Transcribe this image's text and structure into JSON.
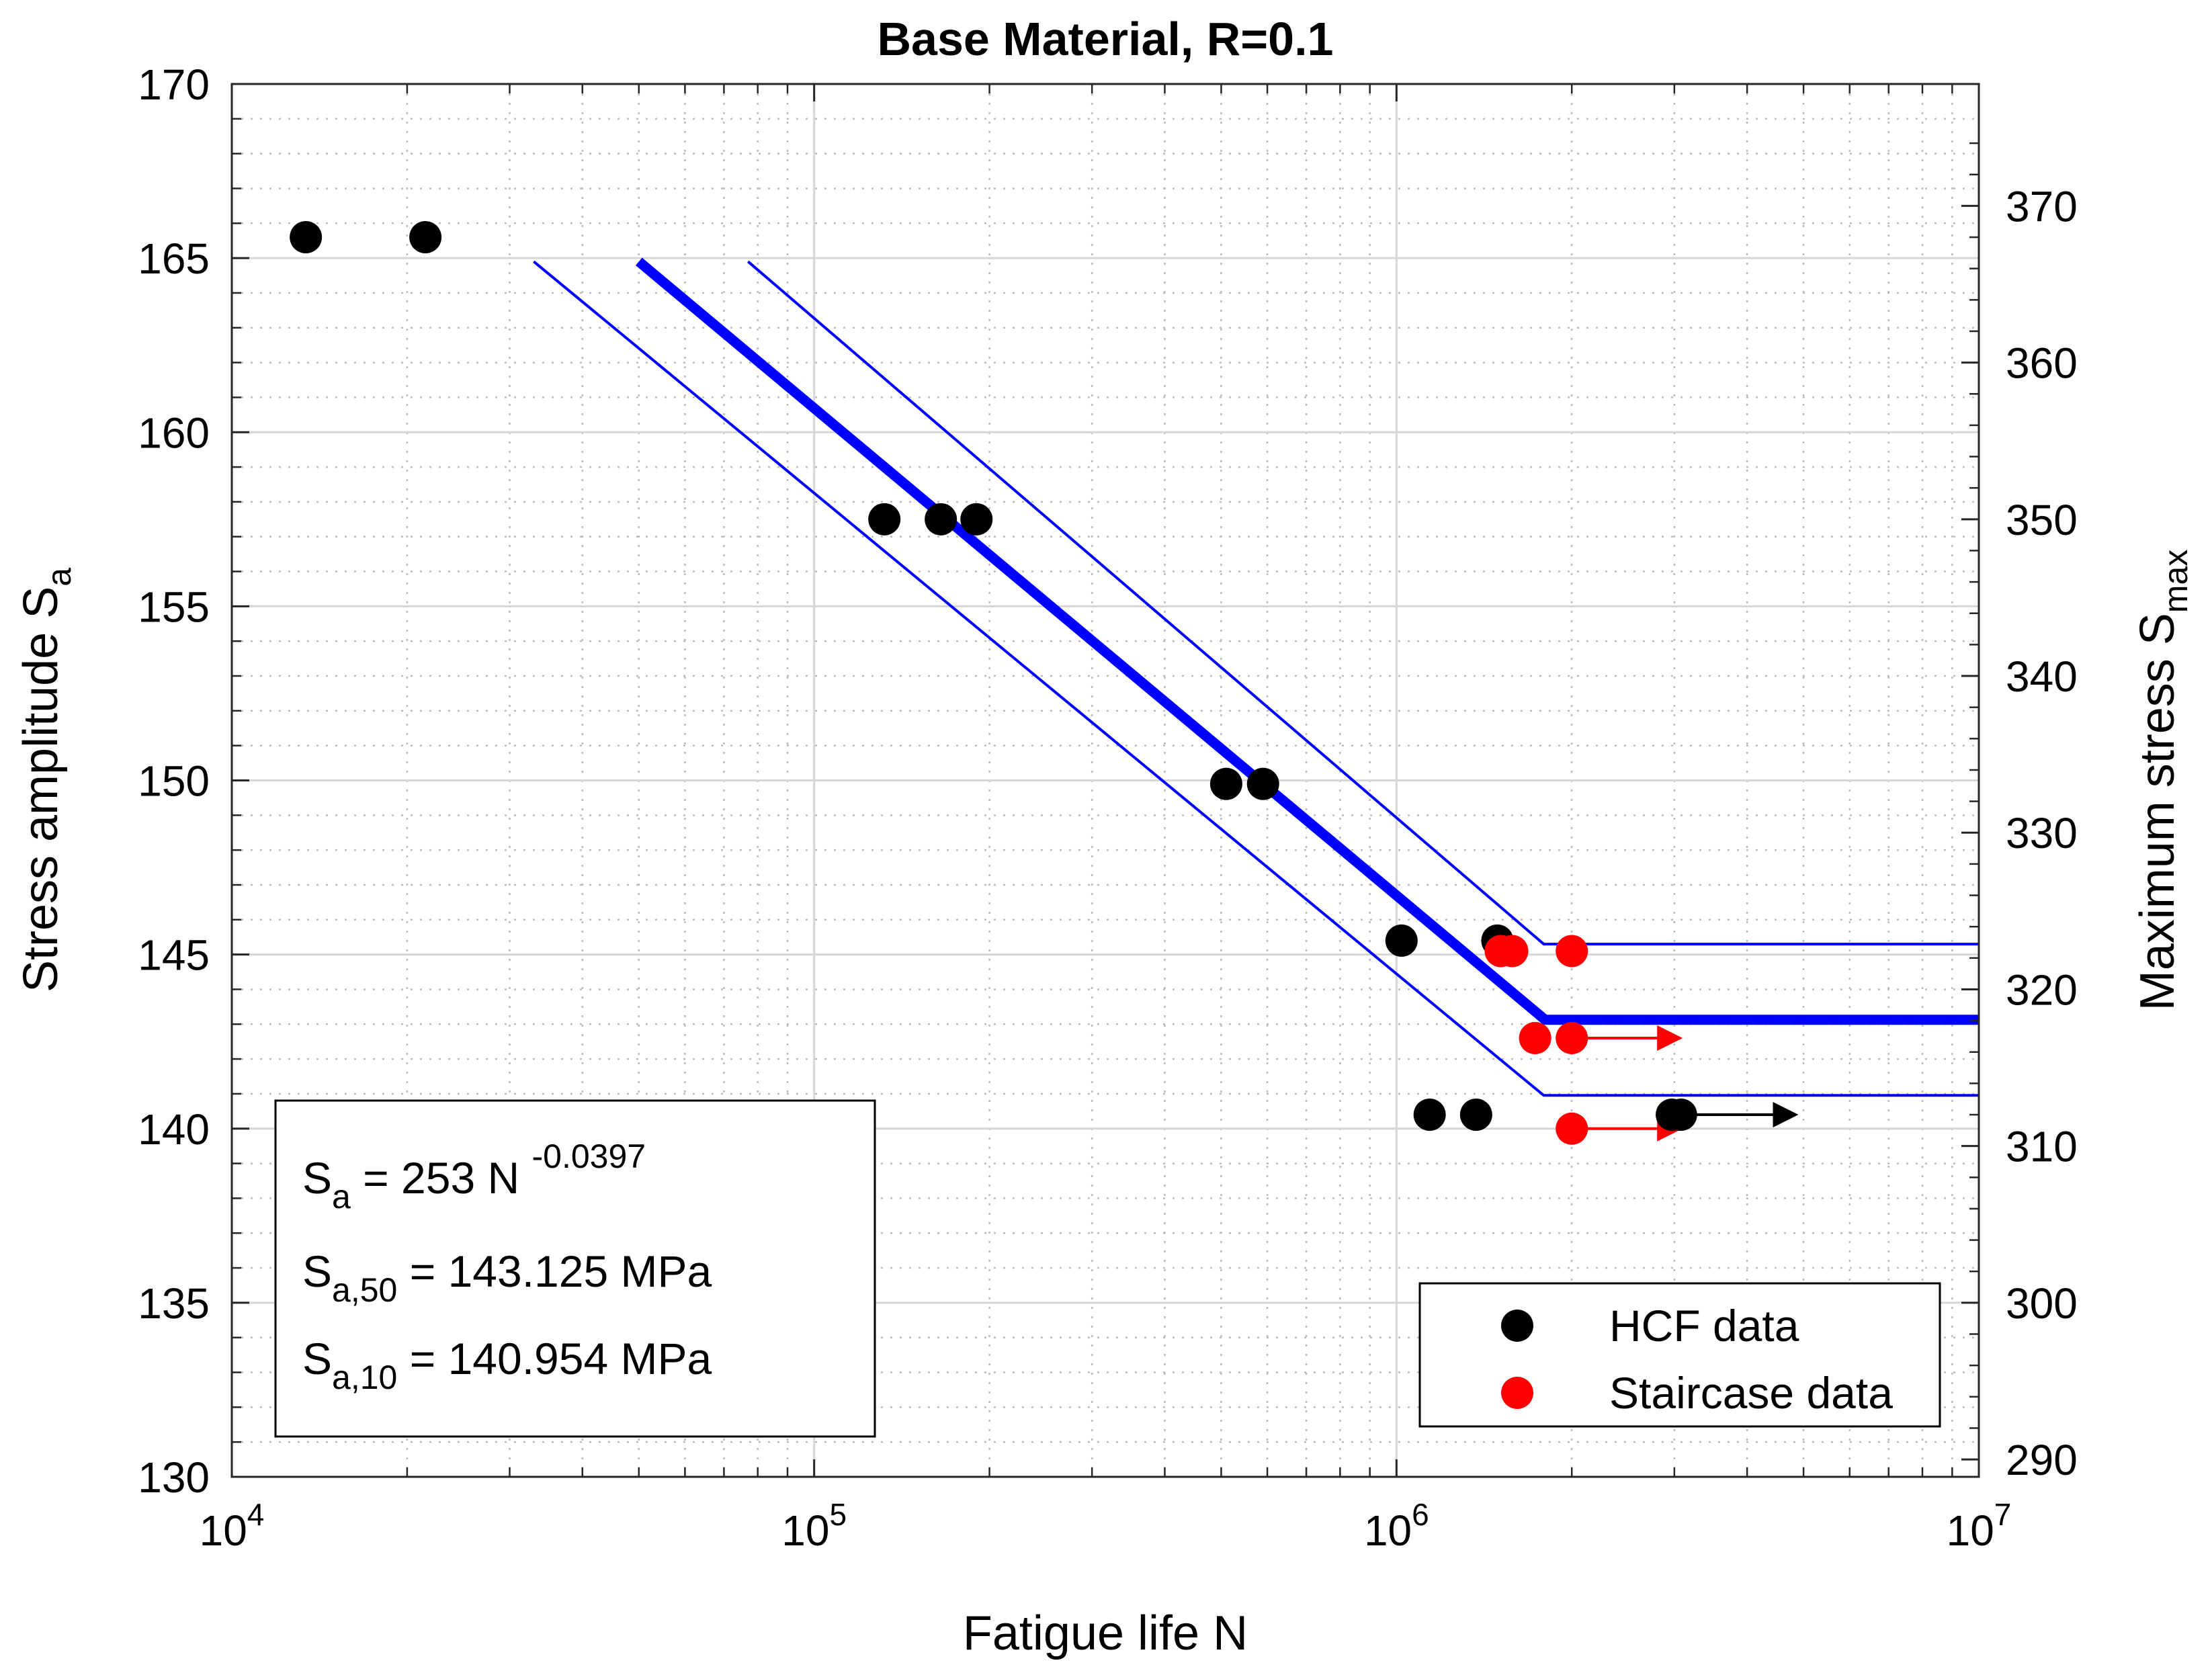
{
  "chart_data": {
    "type": "scatter",
    "title": "Base Material, R=0.1",
    "xlabel": "Fatigue life N",
    "xscale": "log",
    "xlim": [
      10000,
      10000000
    ],
    "x_tick_bases": [
      "10",
      "10",
      "10",
      "10"
    ],
    "x_tick_exponents": [
      "4",
      "5",
      "6",
      "7"
    ],
    "ylabel_main": "Stress amplitude S",
    "ylabel_sub": "a",
    "ylim": [
      130,
      170
    ],
    "yticks": [
      130,
      135,
      140,
      145,
      150,
      155,
      160,
      165,
      170
    ],
    "y2label_main": "Maximum stress S",
    "y2label_sub": "max",
    "y2lim": [
      288.889,
      377.778
    ],
    "y2ticks": [
      290,
      300,
      310,
      320,
      330,
      340,
      350,
      360,
      370
    ],
    "grid": true,
    "series": [
      {
        "name": "HCF data",
        "color": "#000000",
        "points": [
          {
            "x": 13400,
            "y": 165.6
          },
          {
            "x": 21500,
            "y": 165.6
          },
          {
            "x": 132000,
            "y": 157.5
          },
          {
            "x": 165000,
            "y": 157.5
          },
          {
            "x": 190000,
            "y": 157.5
          },
          {
            "x": 510000,
            "y": 149.9
          },
          {
            "x": 590000,
            "y": 149.9
          },
          {
            "x": 1020000,
            "y": 145.4
          },
          {
            "x": 1490000,
            "y": 145.4
          },
          {
            "x": 1140000,
            "y": 140.4
          },
          {
            "x": 1370000,
            "y": 140.4
          },
          {
            "x": 2970000,
            "y": 140.4
          },
          {
            "x": 3080000,
            "y": 140.4
          }
        ]
      },
      {
        "name": "Staircase data",
        "color": "#ff0000",
        "points": [
          {
            "x": 1510000,
            "y": 145.1
          },
          {
            "x": 1580000,
            "y": 145.1
          },
          {
            "x": 2000000,
            "y": 145.1
          },
          {
            "x": 1730000,
            "y": 142.6
          },
          {
            "x": 2000000,
            "y": 142.6
          },
          {
            "x": 2000000,
            "y": 140.0
          }
        ]
      }
    ],
    "runouts": [
      {
        "color": "#ff0000",
        "x_from": 2000000,
        "x_to": 3100000,
        "y": 142.6
      },
      {
        "color": "#ff0000",
        "x_from": 2000000,
        "x_to": 3100000,
        "y": 140.0
      },
      {
        "color": "#000000",
        "x_from": 3080000,
        "x_to": 4900000,
        "y": 140.4
      }
    ],
    "curves": [
      {
        "name": "median",
        "color": "#0000ff",
        "style": "thick",
        "points": [
          [
            50000,
            164.9
          ],
          [
            1800000,
            143.125
          ],
          [
            10000000,
            143.125
          ]
        ]
      },
      {
        "name": "upper",
        "color": "#0000ff",
        "style": "thin",
        "points": [
          [
            77000,
            164.9
          ],
          [
            1790000,
            145.3
          ],
          [
            10000000,
            145.3
          ]
        ]
      },
      {
        "name": "lower",
        "color": "#0000ff",
        "style": "thin",
        "points": [
          [
            33000,
            164.9
          ],
          [
            1790000,
            140.954
          ],
          [
            10000000,
            140.954
          ]
        ]
      }
    ],
    "legend_position": "bottom-right",
    "legend": [
      {
        "label": "HCF data",
        "color": "#000000"
      },
      {
        "label": "Staircase data",
        "color": "#ff0000"
      }
    ],
    "annotation": {
      "line1": {
        "main": "S",
        "sub": "a",
        "rest": " = 253 N ",
        "sup": "-0.0397"
      },
      "line2": {
        "main": "S",
        "sub": "a,50",
        "rest": " = 143.125 MPa"
      },
      "line3": {
        "main": "S",
        "sub": "a,10",
        "rest": " = 140.954 MPa"
      }
    }
  }
}
